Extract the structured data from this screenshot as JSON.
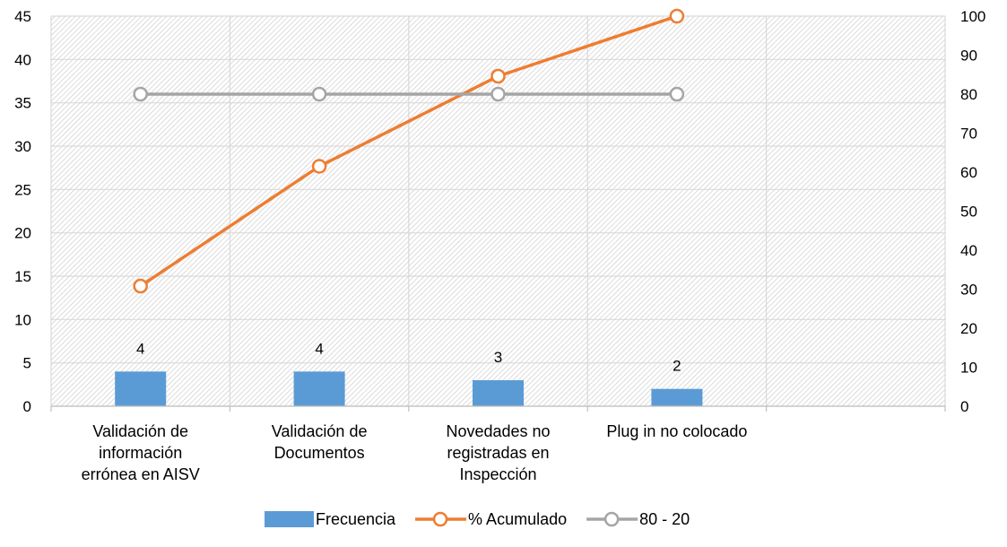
{
  "chart_data": {
    "type": "bar",
    "title": "",
    "categories": [
      [
        "Validación de",
        "información",
        "errónea en AISV"
      ],
      [
        "Validación de",
        "Documentos"
      ],
      [
        "Novedades no",
        "registradas en",
        "Inspección"
      ],
      [
        "Plug in no colocado"
      ],
      [
        ""
      ]
    ],
    "series": [
      {
        "name": "Frecuencia",
        "type": "bar",
        "axis": "left",
        "values": [
          4,
          4,
          3,
          2,
          null
        ],
        "data_labels": [
          "4",
          "4",
          "3",
          "2",
          ""
        ],
        "color": "#5b9bd5"
      },
      {
        "name": "% Acumulado",
        "type": "line",
        "axis": "right",
        "values": [
          30.8,
          61.5,
          84.6,
          100,
          null
        ],
        "color": "#ed7d31"
      },
      {
        "name": "80 - 20",
        "type": "line",
        "axis": "right",
        "values": [
          80,
          80,
          80,
          80,
          null
        ],
        "color": "#a5a5a5"
      }
    ],
    "y_left": {
      "min": 0,
      "max": 45,
      "ticks": [
        "0",
        "5",
        "10",
        "15",
        "20",
        "25",
        "30",
        "35",
        "40",
        "45"
      ]
    },
    "y_right": {
      "min": 0,
      "max": 100,
      "ticks": [
        "0",
        "10",
        "20",
        "30",
        "40",
        "50",
        "60",
        "70",
        "80",
        "90",
        "100"
      ]
    },
    "grid": true,
    "legend_position": "bottom"
  }
}
